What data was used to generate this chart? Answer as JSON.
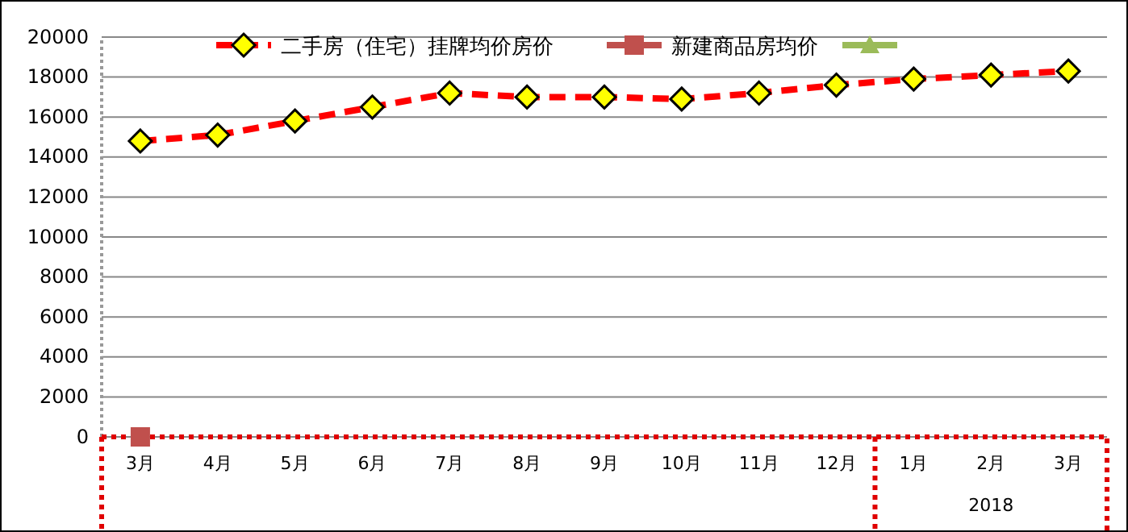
{
  "chart_data": {
    "type": "line",
    "categories": [
      "3月",
      "4月",
      "5月",
      "6月",
      "7月",
      "8月",
      "9月",
      "10月",
      "11月",
      "12月",
      "1月",
      "2月",
      "3月"
    ],
    "series": [
      {
        "name": "二手房（住宅）挂牌均价房价",
        "color": "#ff0000",
        "marker": "diamond",
        "line_style": "dashed",
        "values": [
          14800,
          15100,
          15800,
          16500,
          17200,
          17000,
          17000,
          16900,
          17200,
          17600,
          17900,
          18100,
          18300
        ]
      },
      {
        "name": "新建商品房均价",
        "color": "#c0504d",
        "marker": "square",
        "values": [
          0,
          null,
          null,
          null,
          null,
          null,
          null,
          null,
          null,
          null,
          null,
          null,
          null
        ]
      },
      {
        "color": "#9bbb59",
        "marker": "triangle",
        "values": [
          null,
          null,
          null,
          null,
          null,
          null,
          null,
          null,
          null,
          null,
          null,
          null,
          null
        ]
      }
    ],
    "ylim": [
      0,
      20000
    ],
    "yticks": [
      0,
      2000,
      4000,
      6000,
      8000,
      10000,
      12000,
      14000,
      16000,
      18000,
      20000
    ],
    "grid": "y",
    "legend": "top",
    "annotations": [
      "2018"
    ]
  }
}
